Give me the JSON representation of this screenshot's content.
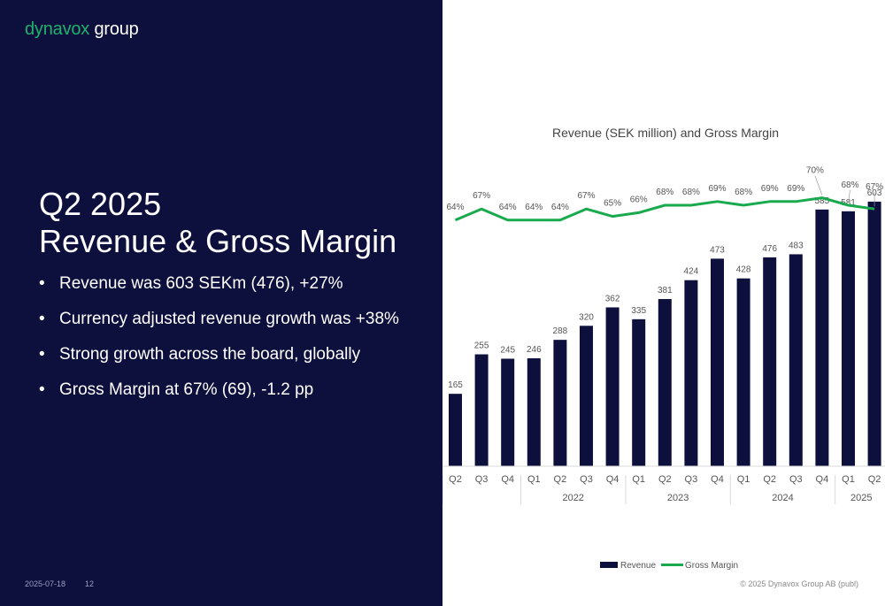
{
  "logo": {
    "brand": "dynavox",
    "rest": "group"
  },
  "slide": {
    "title_line1": "Q2 2025",
    "title_line2": "Revenue & Gross Margin",
    "bullets": [
      "Revenue was 603 SEKm (476), +27%",
      "Currency adjusted revenue growth was +38%",
      "Strong growth across the board, globally",
      "Gross Margin at 67% (69), -1.2 pp"
    ]
  },
  "footer": {
    "date": "2025-07-18",
    "page": "12",
    "copyright": "© 2025 Dynavox Group AB (publ)"
  },
  "colors": {
    "navy": "#0d0f3d",
    "green": "#1db36b",
    "bar": "#0d0f3d",
    "line": "#1aaa4e"
  },
  "chart_data": {
    "type": "bar",
    "title": "Revenue (SEK million) and Gross Margin",
    "categories": [
      "Q2",
      "Q3",
      "Q4",
      "Q1",
      "Q2",
      "Q3",
      "Q4",
      "Q1",
      "Q2",
      "Q3",
      "Q4",
      "Q1",
      "Q2",
      "Q3",
      "Q4",
      "Q1",
      "Q2"
    ],
    "year_groups": [
      {
        "label": "2022",
        "start": 3,
        "end": 6
      },
      {
        "label": "2023",
        "start": 7,
        "end": 10
      },
      {
        "label": "2024",
        "start": 11,
        "end": 14
      },
      {
        "label": "2025",
        "start": 15,
        "end": 16
      }
    ],
    "series": [
      {
        "name": "Revenue",
        "type": "bar",
        "values": [
          165,
          255,
          245,
          246,
          288,
          320,
          362,
          335,
          381,
          424,
          473,
          428,
          476,
          483,
          585,
          581,
          603
        ]
      },
      {
        "name": "Gross Margin",
        "type": "line",
        "unit": "%",
        "values": [
          64,
          67,
          64,
          64,
          64,
          67,
          65,
          66,
          68,
          68,
          69,
          68,
          69,
          69,
          70,
          68,
          67
        ]
      }
    ],
    "legend": {
      "position": "bottom",
      "items": [
        "Revenue",
        "Gross Margin"
      ]
    }
  }
}
